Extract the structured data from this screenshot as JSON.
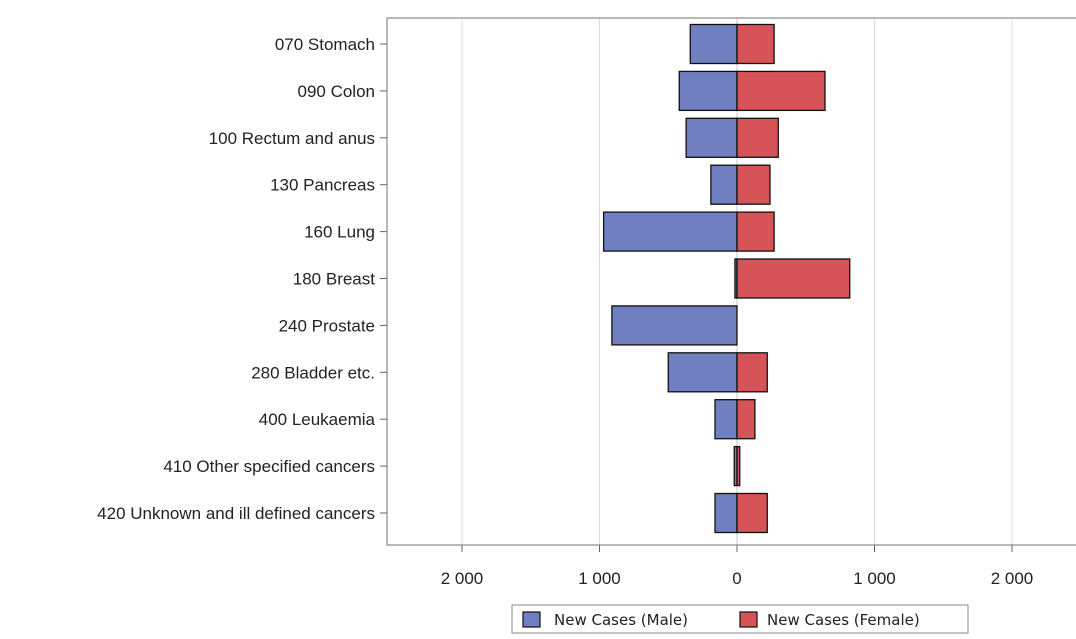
{
  "chart_data": {
    "type": "bar",
    "orientation": "horizontal",
    "layout": "diverging",
    "categories": [
      "070 Stomach",
      "090 Colon",
      "100 Rectum and anus",
      "130 Pancreas",
      "160 Lung",
      "180 Breast",
      "240 Prostate",
      "280 Bladder etc.",
      "400 Leukaemia",
      "410 Other specified cancers",
      "420 Unknown and ill defined cancers"
    ],
    "series": [
      {
        "name": "New Cases (Male)",
        "side": "left",
        "color": "#6f7fc0",
        "values": [
          340,
          420,
          370,
          190,
          970,
          15,
          910,
          500,
          160,
          20,
          160
        ]
      },
      {
        "name": "New Cases (Female)",
        "side": "right",
        "color": "#d65458",
        "values": [
          270,
          640,
          300,
          240,
          270,
          820,
          0,
          220,
          130,
          20,
          220
        ]
      }
    ],
    "xlim": [
      -2400,
      2400
    ],
    "xticks": [
      -2000,
      -1000,
      0,
      1000,
      2000
    ],
    "xtick_labels": [
      "2 000",
      "1 000",
      "0",
      "1 000",
      "2 000"
    ],
    "grid": true,
    "legend_position": "bottom",
    "title": "",
    "xlabel": "",
    "ylabel": ""
  }
}
